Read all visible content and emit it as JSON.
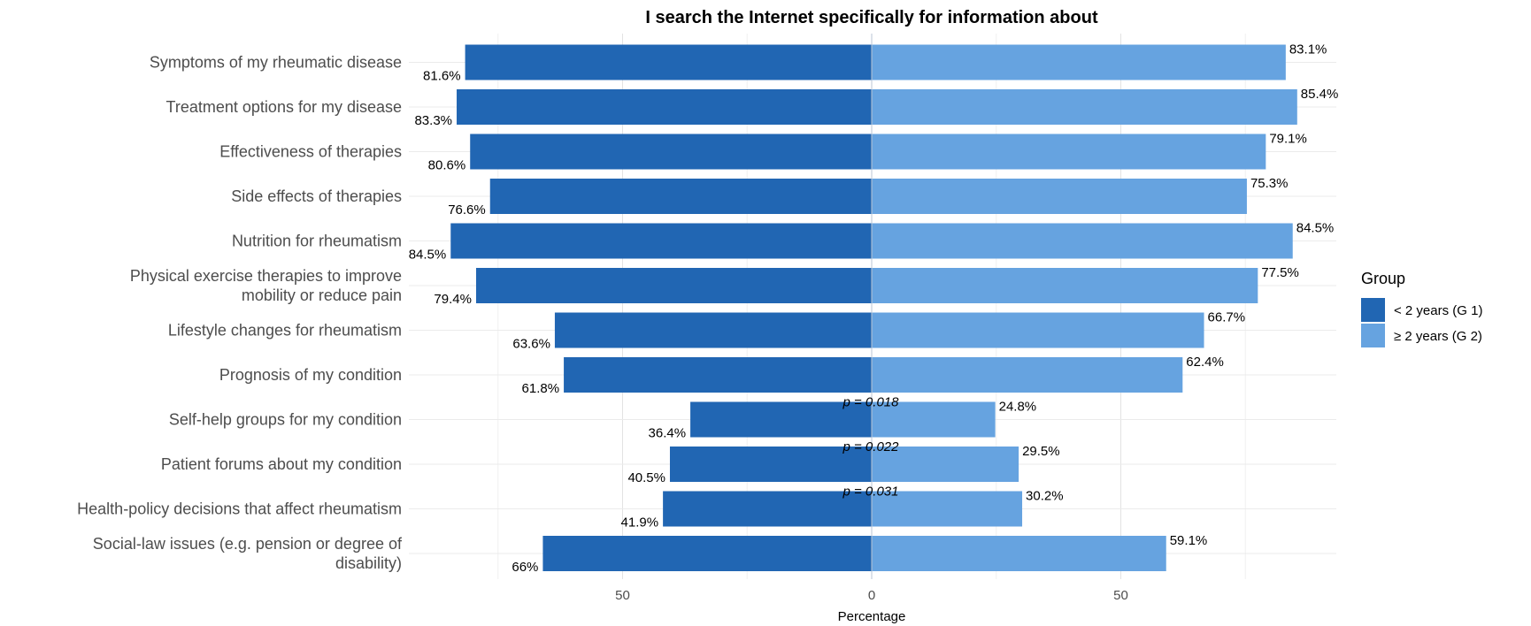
{
  "chart_data": {
    "type": "bar",
    "orientation": "horizontal-diverging",
    "title": "I search the Internet specifically for information about",
    "xlabel": "Percentage",
    "ylabel": "",
    "xlim": [
      -80,
      80
    ],
    "xticks": [
      -50,
      0,
      50
    ],
    "xtick_labels": [
      "50",
      "0",
      "50"
    ],
    "grid": true,
    "legend": {
      "title": "Group",
      "position": "right"
    },
    "categories": [
      "Symptoms of my rheumatic disease",
      "Treatment options for my disease",
      "Effectiveness of therapies",
      "Side effects of therapies",
      "Nutrition for rheumatism",
      "Physical exercise therapies to improve mobility or reduce pain",
      "Lifestyle changes for rheumatism",
      "Prognosis of my condition",
      "Self-help groups for my condition",
      "Patient forums about my condition",
      "Health-policy decisions that affect rheumatism",
      "Social-law issues (e.g. pension or degree of disability)"
    ],
    "category_lines": [
      [
        "Symptoms of my rheumatic disease"
      ],
      [
        "Treatment options for my disease"
      ],
      [
        "Effectiveness of therapies"
      ],
      [
        "Side effects of therapies"
      ],
      [
        "Nutrition for rheumatism"
      ],
      [
        "Physical exercise therapies to improve",
        "mobility or reduce pain"
      ],
      [
        "Lifestyle changes for rheumatism"
      ],
      [
        "Prognosis of my condition"
      ],
      [
        "Self-help groups for my condition"
      ],
      [
        "Patient forums about my condition"
      ],
      [
        "Health-policy decisions that affect rheumatism"
      ],
      [
        "Social-law issues (e.g. pension or degree of",
        "disability)"
      ]
    ],
    "series": [
      {
        "name": "< 2 years (G 1)",
        "color": "#2166b3",
        "side": "left",
        "values": [
          81.6,
          83.3,
          80.6,
          76.6,
          84.5,
          79.4,
          63.6,
          61.8,
          36.4,
          40.5,
          41.9,
          66
        ],
        "labels": [
          "81.6%",
          "83.3%",
          "80.6%",
          "76.6%",
          "84.5%",
          "79.4%",
          "63.6%",
          "61.8%",
          "36.4%",
          "40.5%",
          "41.9%",
          "66%"
        ]
      },
      {
        "name": "≥ 2 years (G 2)",
        "color": "#66a3e0",
        "side": "right",
        "values": [
          83.1,
          85.4,
          79.1,
          75.3,
          84.5,
          77.5,
          66.7,
          62.4,
          24.8,
          29.5,
          30.2,
          59.1
        ],
        "labels": [
          "83.1%",
          "85.4%",
          "79.1%",
          "75.3%",
          "84.5%",
          "77.5%",
          "66.7%",
          "62.4%",
          "24.8%",
          "29.5%",
          "30.2%",
          "59.1%"
        ]
      }
    ],
    "annotations": [
      {
        "category_index": 8,
        "text": "p = 0.018"
      },
      {
        "category_index": 9,
        "text": "p = 0.022"
      },
      {
        "category_index": 10,
        "text": "p = 0.031"
      }
    ]
  }
}
